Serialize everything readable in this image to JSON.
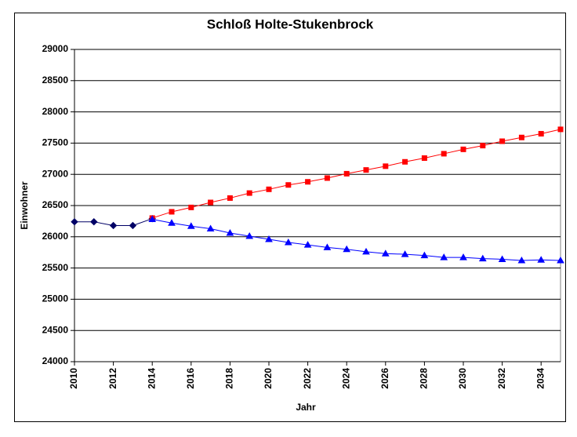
{
  "chart_data": {
    "type": "line",
    "title": "Schloß Holte-Stukenbrock",
    "x_label": "Jahr",
    "y_label": "Einwohner",
    "xlim": [
      2010,
      2035
    ],
    "xticks": [
      2010,
      2012,
      2014,
      2016,
      2018,
      2020,
      2022,
      2024,
      2026,
      2028,
      2030,
      2032,
      2034
    ],
    "ylim": [
      24000,
      29000
    ],
    "yticks": [
      24000,
      24500,
      25000,
      25500,
      26000,
      26500,
      27000,
      27500,
      28000,
      28500,
      29000
    ],
    "grid": true,
    "series": [
      {
        "color": "#000066",
        "marker": "diamond",
        "x": [
          2010,
          2011,
          2012,
          2013,
          2014
        ],
        "values": [
          26240,
          26240,
          26180,
          26180,
          26290
        ]
      },
      {
        "color": "#ff0000",
        "marker": "square",
        "x": [
          2014,
          2015,
          2016,
          2017,
          2018,
          2019,
          2020,
          2021,
          2022,
          2023,
          2024,
          2025,
          2026,
          2027,
          2028,
          2029,
          2030,
          2031,
          2032,
          2033,
          2034,
          2035
        ],
        "values": [
          26300,
          26400,
          26470,
          26550,
          26620,
          26700,
          26760,
          26830,
          26880,
          26940,
          27010,
          27070,
          27130,
          27200,
          27260,
          27330,
          27400,
          27460,
          27530,
          27590,
          27650,
          27720
        ]
      },
      {
        "color": "#0000ff",
        "marker": "triangle",
        "x": [
          2014,
          2015,
          2016,
          2017,
          2018,
          2019,
          2020,
          2021,
          2022,
          2023,
          2024,
          2025,
          2026,
          2027,
          2028,
          2029,
          2030,
          2031,
          2032,
          2033,
          2034,
          2035
        ],
        "values": [
          26280,
          26220,
          26170,
          26130,
          26060,
          26010,
          25960,
          25910,
          25870,
          25830,
          25800,
          25760,
          25730,
          25720,
          25700,
          25670,
          25670,
          25650,
          25640,
          25620,
          25630,
          25620
        ]
      }
    ]
  }
}
